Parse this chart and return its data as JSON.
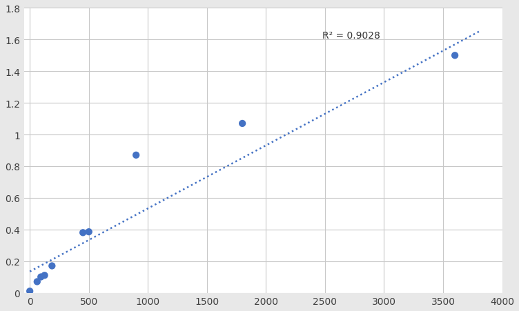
{
  "x": [
    0,
    62,
    94,
    125,
    188,
    450,
    500,
    900,
    1800,
    3600
  ],
  "y": [
    0.01,
    0.07,
    0.1,
    0.11,
    0.17,
    0.38,
    0.385,
    0.87,
    1.07,
    1.5
  ],
  "trendline_x": [
    0,
    3820
  ],
  "trendline_y": [
    0.134,
    1.657
  ],
  "r_squared": "R² = 0.9028",
  "r_squared_x": 2480,
  "r_squared_y": 1.595,
  "xlim": [
    -50,
    4000
  ],
  "ylim": [
    0,
    1.8
  ],
  "xticks": [
    0,
    500,
    1000,
    1500,
    2000,
    2500,
    3000,
    3500,
    4000
  ],
  "yticks": [
    0,
    0.2,
    0.4,
    0.6,
    0.8,
    1.0,
    1.2,
    1.4,
    1.6,
    1.8
  ],
  "dot_color": "#4472C4",
  "trendline_color": "#4472C4",
  "grid_color": "#C8C8C8",
  "background_color": "#FFFFFF",
  "plot_bg_color": "#FFFFFF",
  "outer_bg_color": "#E8E8E8"
}
